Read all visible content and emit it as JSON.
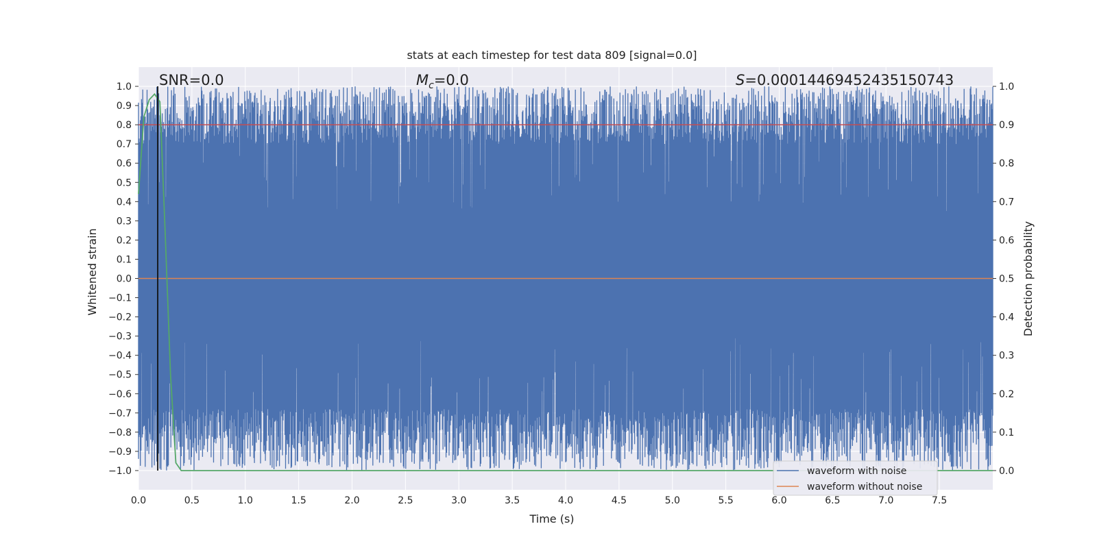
{
  "chart_data": {
    "type": "line",
    "title": "stats at each timestep for test data 809 [signal=0.0]",
    "xlabel": "Time (s)",
    "ylabel": "Whitened strain",
    "y2label": "Detection probability",
    "xlim": [
      0.0,
      8.0
    ],
    "ylim": [
      -1.1,
      1.1
    ],
    "y2lim": [
      -0.05,
      1.05
    ],
    "xticks": [
      "0.0",
      "0.5",
      "1.0",
      "1.5",
      "2.0",
      "2.5",
      "3.0",
      "3.5",
      "4.0",
      "4.5",
      "5.0",
      "5.5",
      "6.0",
      "6.5",
      "7.0",
      "7.5"
    ],
    "yticks": [
      "1.0",
      "0.9",
      "0.8",
      "0.7",
      "0.6",
      "0.5",
      "0.4",
      "0.3",
      "0.2",
      "0.1",
      "0.0",
      "−0.1",
      "−0.2",
      "−0.3",
      "−0.4",
      "−0.5",
      "−0.6",
      "−0.7",
      "−0.8",
      "−0.9",
      "−1.0"
    ],
    "y2ticks": [
      "1.0",
      "0.9",
      "0.8",
      "0.7",
      "0.6",
      "0.5",
      "0.4",
      "0.3",
      "0.2",
      "0.1",
      "0.0"
    ],
    "grid": true,
    "legend_position": "bottom-right",
    "annotations": {
      "snr": "SNR=0.0",
      "mc_symbol": "M",
      "mc_sub": "c",
      "mc_value": "=0.0",
      "s_symbol": "S",
      "s_value": "=0.00014469452435150743"
    },
    "series": [
      {
        "name": "waveform with noise",
        "color": "#4c72b0",
        "description_values": "dense noise spanning -1.0 to 1.0 over 0–8 s"
      },
      {
        "name": "waveform without noise",
        "color": "#dd8452",
        "constant_value": 0.0
      },
      {
        "color": "#c44e52",
        "axis": "right",
        "constant_value": 0.9
      },
      {
        "color": "#55a868",
        "axis": "right",
        "x": [
          0.0,
          0.05,
          0.1,
          0.15,
          0.2,
          0.25,
          0.3,
          0.35,
          0.4,
          8.0
        ],
        "y": [
          0.72,
          0.92,
          0.965,
          0.98,
          0.96,
          0.62,
          0.25,
          0.02,
          0.0,
          0.0
        ]
      },
      {
        "color": "#111111",
        "type": "vline",
        "x": 0.18
      }
    ]
  },
  "colors": {
    "plot_bg": "#eaeaf2",
    "grid": "#ffffff",
    "noise": "#4c72b0",
    "clean": "#dd8452",
    "threshold": "#c44e52",
    "probability": "#55a868",
    "marker": "#111111"
  }
}
